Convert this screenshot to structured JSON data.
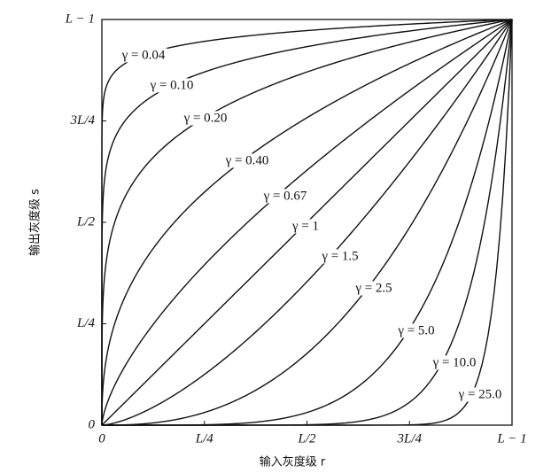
{
  "chart_data": {
    "type": "gamma",
    "x_label": "输入灰度级 r",
    "y_label": "输出灰度级 s",
    "xlim": [
      0,
      1
    ],
    "ylim": [
      0,
      1
    ],
    "xticks": [
      0,
      {
        "value": 0.25,
        "label": "L/4"
      },
      {
        "value": 0.5,
        "label": "L/2"
      },
      {
        "value": 0.75,
        "label": "3L/4"
      },
      {
        "value": 1,
        "label": "L − 1"
      }
    ],
    "yticks": [
      0,
      {
        "value": 0.25,
        "label": "L/4"
      },
      {
        "value": 0.5,
        "label": "L/2"
      },
      {
        "value": 0.75,
        "label": "3L/4"
      },
      {
        "value": 1,
        "label": "L − 1"
      }
    ],
    "color": "#111111",
    "series": [
      {
        "gamma": 0.04,
        "label": "γ = 0.04"
      },
      {
        "gamma": 0.1,
        "label": "γ = 0.10"
      },
      {
        "gamma": 0.2,
        "label": "γ = 0.20"
      },
      {
        "gamma": 0.4,
        "label": "γ = 0.40"
      },
      {
        "gamma": 0.67,
        "label": "γ = 0.67"
      },
      {
        "gamma": 1,
        "label": "γ = 1"
      },
      {
        "gamma": 1.5,
        "label": "γ = 1.5"
      },
      {
        "gamma": 2.5,
        "label": "γ = 2.5"
      },
      {
        "gamma": 5,
        "label": "γ = 5.0"
      },
      {
        "gamma": 10,
        "label": "γ = 10.0"
      },
      {
        "gamma": 25,
        "label": "γ = 25.0"
      }
    ]
  }
}
